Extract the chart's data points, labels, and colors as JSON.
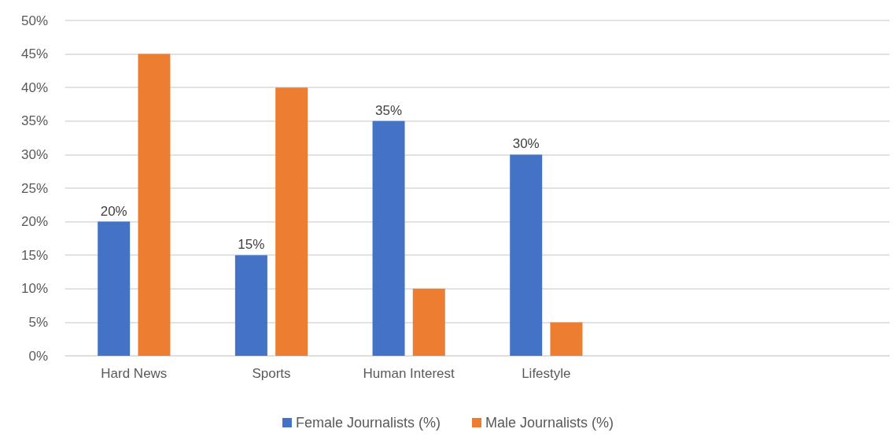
{
  "chart_data": {
    "type": "bar",
    "categories": [
      "Hard News",
      "Sports",
      "Human Interest",
      "Lifestyle",
      null,
      null
    ],
    "series": [
      {
        "name": "Female Journalists (%)",
        "color": "#4472c4",
        "values": [
          20,
          15,
          35,
          30,
          null,
          null
        ],
        "value_labels": [
          "20%",
          "15%",
          "35%",
          "30%",
          null,
          null
        ]
      },
      {
        "name": "Male Journalists (%)",
        "color": "#ed7d31",
        "values": [
          45,
          40,
          10,
          5,
          null,
          null
        ]
      }
    ],
    "ylim": [
      0,
      50
    ],
    "yticks": [
      {
        "value": 0,
        "label": "0%"
      },
      {
        "value": 5,
        "label": "5%"
      },
      {
        "value": 10,
        "label": "10%"
      },
      {
        "value": 15,
        "label": "15%"
      },
      {
        "value": 20,
        "label": "20%"
      },
      {
        "value": 25,
        "label": "25%"
      },
      {
        "value": 30,
        "label": "30%"
      },
      {
        "value": 35,
        "label": "35%"
      },
      {
        "value": 40,
        "label": "40%"
      },
      {
        "value": 45,
        "label": "45%"
      },
      {
        "value": 50,
        "label": "50%"
      }
    ],
    "grid": "y",
    "legend": "bottom"
  }
}
